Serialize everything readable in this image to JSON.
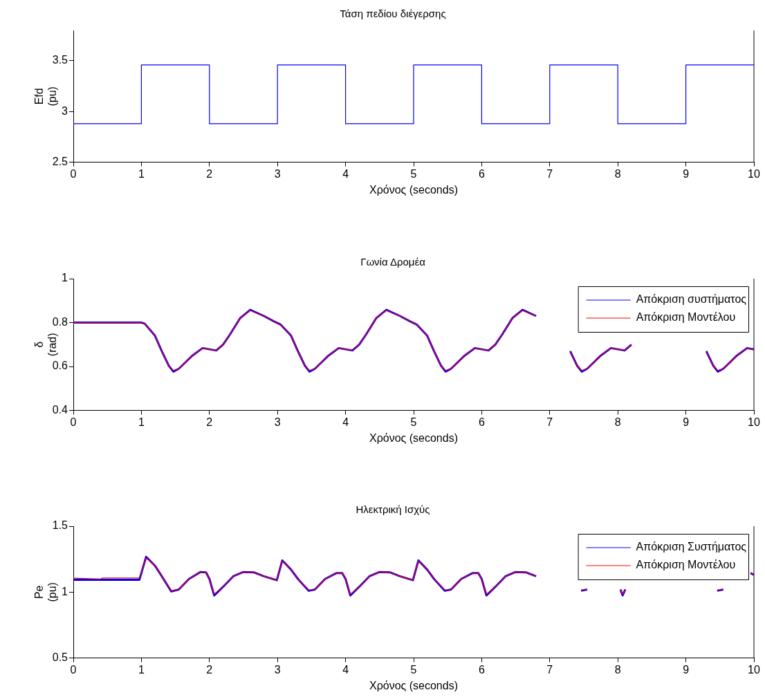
{
  "chart_data": [
    {
      "type": "step",
      "title": "Τάση πεδίου διέγερσης",
      "xlabel": "Χρόνος (seconds)",
      "ylabel": "Efd\n(pu)",
      "x": [
        0,
        1,
        2,
        3,
        4,
        5,
        6,
        7,
        8,
        9,
        10
      ],
      "series": [
        {
          "color": "#0000ff",
          "values": [
            2.88,
            3.46,
            2.88,
            3.46,
            2.88,
            3.46,
            2.88,
            3.46,
            2.88,
            3.46,
            3.46
          ]
        }
      ],
      "xlim": [
        0,
        10
      ],
      "xticks": [
        0,
        1,
        2,
        3,
        4,
        5,
        6,
        7,
        8,
        9,
        10
      ],
      "ylim": [
        2.5,
        3.8
      ],
      "yticks": [
        2.5,
        3,
        3.5
      ],
      "grid": false,
      "legend": false
    },
    {
      "type": "line",
      "title": "Γωνία Δρομέα",
      "xlabel": "Χρόνος (seconds)",
      "ylabel": "δ\n(rad)",
      "x": [
        0,
        1,
        1.05,
        1.2,
        1.3,
        1.4,
        1.47,
        1.55,
        1.65,
        1.75,
        1.9,
        2.1,
        2.2,
        2.3,
        2.45,
        2.6,
        2.8,
        2.95,
        3.05,
        3.2,
        3.3,
        3.4,
        3.47,
        3.55,
        3.65,
        3.75,
        3.9,
        4.1,
        4.2,
        4.3,
        4.45,
        4.6,
        4.8,
        4.95,
        5.05,
        5.2,
        5.3,
        5.4,
        5.47,
        5.55,
        5.65,
        5.75,
        5.9,
        6.1,
        6.2,
        6.3,
        6.45,
        6.6,
        6.8,
        6.95,
        7.05,
        7.2,
        7.3,
        7.4,
        7.47,
        7.55,
        7.65,
        7.75,
        7.9,
        8.1,
        8.2,
        8.3,
        8.45,
        8.6,
        8.8,
        8.95,
        9.05,
        9.2,
        9.3,
        9.4,
        9.47,
        9.55,
        9.65,
        9.75,
        9.9,
        10
      ],
      "series": [
        {
          "name": "Απόκριση συστήματος",
          "color": "#0000ff",
          "values": [
            0.8,
            0.8,
            0.795,
            0.74,
            0.67,
            0.605,
            0.577,
            0.59,
            0.62,
            0.65,
            0.684,
            0.673,
            0.7,
            0.745,
            0.82,
            0.858,
            0.83,
            0.805,
            0.79,
            0.74,
            0.67,
            0.605,
            0.577,
            0.59,
            0.62,
            0.65,
            0.684,
            0.673,
            0.7,
            0.745,
            0.82,
            0.858,
            0.83,
            0.805,
            0.79,
            0.74,
            0.67,
            0.605,
            0.577,
            0.59,
            0.62,
            0.65,
            0.684,
            0.673,
            0.7,
            0.745,
            0.82,
            0.858,
            0.83,
            null,
            null,
            null,
            0.67,
            0.605,
            0.577,
            0.59,
            0.62,
            0.65,
            0.684,
            0.673,
            0.7,
            null,
            null,
            null,
            null,
            null,
            null,
            null,
            0.67,
            0.605,
            0.577,
            0.59,
            0.62,
            0.65,
            0.684,
            0.678
          ]
        },
        {
          "name": "Απόκριση Μοντέλου",
          "color": "#ff0000",
          "values": [
            0.8,
            0.8,
            0.795,
            0.74,
            0.67,
            0.605,
            0.582,
            0.59,
            0.62,
            0.65,
            0.684,
            0.673,
            0.7,
            0.745,
            0.82,
            0.855,
            0.83,
            0.805,
            0.79,
            0.74,
            0.67,
            0.605,
            0.582,
            0.59,
            0.62,
            0.65,
            0.684,
            0.673,
            0.7,
            0.745,
            0.82,
            0.855,
            0.83,
            0.805,
            0.79,
            0.74,
            0.67,
            0.605,
            0.582,
            0.59,
            0.62,
            0.65,
            0.684,
            0.673,
            0.7,
            0.745,
            0.82,
            0.855,
            0.83,
            null,
            null,
            null,
            0.67,
            0.605,
            0.582,
            0.59,
            0.62,
            0.65,
            0.684,
            0.673,
            0.7,
            null,
            null,
            null,
            null,
            null,
            null,
            null,
            0.67,
            0.605,
            0.582,
            0.59,
            0.62,
            0.65,
            0.684,
            0.678
          ]
        }
      ],
      "xlim": [
        0,
        10
      ],
      "xticks": [
        0,
        1,
        2,
        3,
        4,
        5,
        6,
        7,
        8,
        9,
        10
      ],
      "ylim": [
        0.4,
        1
      ],
      "yticks": [
        0.4,
        0.6,
        0.8,
        1
      ],
      "grid": false,
      "legend": "top right"
    },
    {
      "type": "line",
      "title": "Ηλεκτρική Ισχύς",
      "xlabel": "Χρόνος (seconds)",
      "ylabel": "Pe\n(pu)",
      "x": [
        0,
        0.4,
        0.43,
        0.97,
        1.07,
        1.2,
        1.3,
        1.44,
        1.55,
        1.7,
        1.87,
        1.95,
        2,
        2.07,
        2.2,
        2.35,
        2.5,
        2.65,
        2.8,
        2.99,
        3.07,
        3.2,
        3.3,
        3.46,
        3.55,
        3.7,
        3.87,
        3.95,
        4,
        4.07,
        4.2,
        4.35,
        4.5,
        4.65,
        4.8,
        4.99,
        5.07,
        5.2,
        5.3,
        5.46,
        5.55,
        5.7,
        5.87,
        5.95,
        6,
        6.07,
        6.2,
        6.35,
        6.5,
        6.65,
        6.8,
        6.99,
        7.07,
        7.2,
        7.3,
        7.46,
        7.55,
        7.7,
        7.87,
        7.95,
        8,
        8.04,
        8.07,
        8.11,
        8.2,
        8.35,
        8.5,
        8.65,
        8.8,
        8.99,
        9.07,
        9.2,
        9.3,
        9.46,
        9.55,
        9.7,
        9.87,
        9.95,
        10
      ],
      "series": [
        {
          "name": "Απόκριση Συστήματος",
          "color": "#0000ff",
          "values": [
            1.093,
            1.093,
            1.093,
            1.093,
            1.268,
            1.2,
            1.12,
            1.005,
            1.02,
            1.1,
            1.153,
            1.15,
            1.1,
            0.975,
            1.04,
            1.12,
            1.153,
            1.15,
            1.12,
            1.09,
            1.24,
            1.17,
            1.1,
            1.01,
            1.02,
            1.1,
            1.145,
            1.145,
            1.1,
            0.975,
            1.04,
            1.12,
            1.153,
            1.15,
            1.12,
            1.09,
            1.24,
            1.17,
            1.1,
            1.01,
            1.02,
            1.1,
            1.145,
            1.145,
            1.1,
            0.975,
            1.04,
            1.12,
            1.153,
            1.15,
            1.12,
            null,
            null,
            null,
            null,
            1.01,
            1.02,
            null,
            null,
            null,
            null,
            1.02,
            0.975,
            1.02,
            null,
            null,
            null,
            null,
            null,
            null,
            null,
            null,
            null,
            1.01,
            1.02,
            null,
            null,
            1.145,
            1.13
          ]
        },
        {
          "name": "Απόκριση Μοντέλου",
          "color": "#ff0000",
          "values": [
            1.106,
            1.1,
            1.107,
            1.107,
            1.26,
            1.2,
            1.12,
            1.01,
            1.02,
            1.1,
            1.153,
            1.15,
            1.1,
            0.985,
            1.04,
            1.12,
            1.153,
            1.15,
            1.12,
            1.09,
            1.235,
            1.17,
            1.1,
            1.015,
            1.02,
            1.1,
            1.145,
            1.145,
            1.1,
            0.983,
            1.04,
            1.12,
            1.153,
            1.15,
            1.12,
            1.09,
            1.235,
            1.17,
            1.1,
            1.015,
            1.02,
            1.1,
            1.145,
            1.145,
            1.1,
            0.983,
            1.04,
            1.12,
            1.153,
            1.15,
            1.12,
            null,
            null,
            null,
            null,
            1.015,
            1.02,
            null,
            null,
            null,
            null,
            1.02,
            0.983,
            1.02,
            null,
            null,
            null,
            null,
            null,
            null,
            null,
            null,
            null,
            1.015,
            1.02,
            null,
            null,
            1.145,
            1.13
          ]
        }
      ],
      "xlim": [
        0,
        10
      ],
      "xticks": [
        0,
        1,
        2,
        3,
        4,
        5,
        6,
        7,
        8,
        9,
        10
      ],
      "ylim": [
        0.5,
        1.5
      ],
      "yticks": [
        0.5,
        1,
        1.5
      ],
      "grid": false,
      "legend": "top right"
    }
  ]
}
